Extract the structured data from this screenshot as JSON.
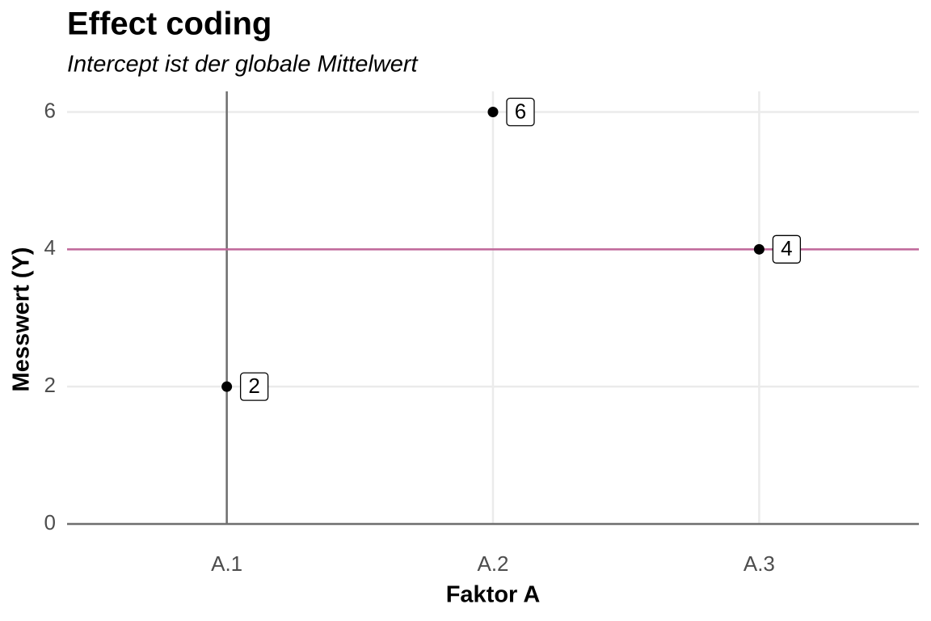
{
  "chart_data": {
    "type": "scatter",
    "title": "Effect coding",
    "subtitle": "Intercept ist der globale Mittelwert",
    "x_label": "Faktor A",
    "y_label": "Messwert (Y)",
    "categories": [
      "A.1",
      "A.2",
      "A.3"
    ],
    "values": [
      2,
      6,
      4
    ],
    "color": "#000000",
    "ylim": [
      0,
      6.3
    ],
    "yticks": [
      0,
      2,
      4,
      6
    ],
    "grid": true,
    "reference_line": {
      "value": 4,
      "color": "#c0679a"
    }
  }
}
